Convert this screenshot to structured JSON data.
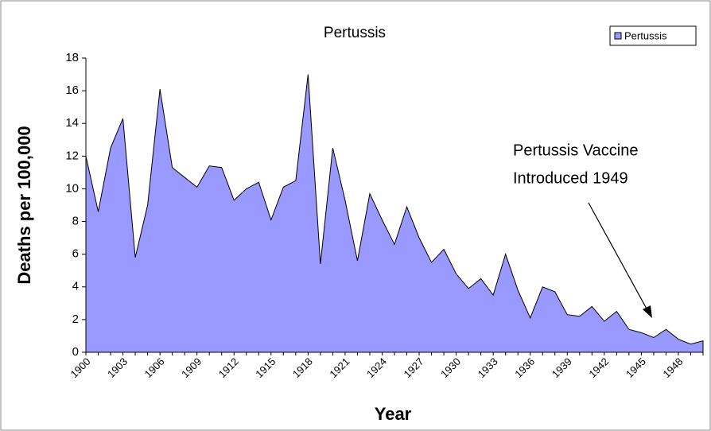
{
  "chart_data": {
    "type": "area",
    "title": "Pertussis",
    "xlabel": "Year",
    "ylabel": "Deaths per 100,000",
    "categories": [
      "1900",
      null,
      null,
      "1903",
      null,
      null,
      "1906",
      null,
      null,
      "1909",
      null,
      null,
      "1912",
      null,
      null,
      "1915",
      null,
      null,
      "1918",
      null,
      null,
      "1921",
      null,
      null,
      "1924",
      null,
      null,
      "1927",
      null,
      null,
      "1930",
      null,
      null,
      "1933",
      null,
      null,
      "1936",
      null,
      null,
      "1939",
      null,
      null,
      "1942",
      null,
      null,
      "1945",
      null,
      null,
      "1948",
      null,
      null
    ],
    "series": [
      {
        "name": "Pertussis",
        "color": "#9999ff",
        "values": [
          12,
          8.6,
          12.5,
          14.3,
          5.8,
          9,
          16.1,
          11.3,
          10.7,
          10.1,
          11.4,
          11.3,
          9.3,
          10,
          10.4,
          8.1,
          10.1,
          10.5,
          17,
          5.4,
          12.5,
          9.3,
          5.6,
          9.7,
          8.1,
          6.6,
          8.9,
          7,
          5.5,
          6.3,
          4.8,
          3.9,
          4.5,
          3.5,
          6,
          3.8,
          2.1,
          4,
          3.7,
          2.3,
          2.2,
          2.8,
          1.9,
          2.5,
          1.4,
          1.2,
          0.9,
          1.4,
          0.8,
          0.5,
          0.7
        ]
      }
    ],
    "ylim": [
      0,
      18
    ],
    "yticks": [
      0,
      2,
      4,
      6,
      8,
      10,
      12,
      14,
      16,
      18
    ],
    "legend": "upper right",
    "annotation": {
      "lines": [
        "Pertussis Vaccine",
        "Introduced 1949"
      ]
    }
  }
}
